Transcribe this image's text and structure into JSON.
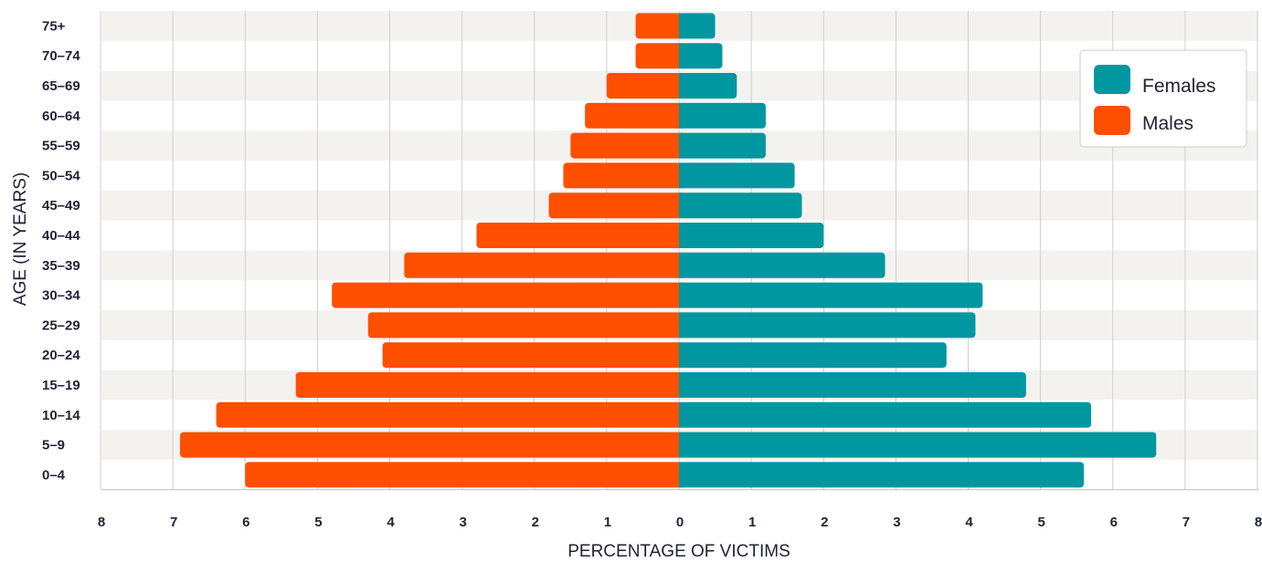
{
  "chart_data": {
    "type": "bar",
    "orientation": "horizontal-butterfly",
    "categories": [
      "75+",
      "70–74",
      "65–69",
      "60–64",
      "55–59",
      "50–54",
      "45–49",
      "40–44",
      "35–39",
      "30–34",
      "25–29",
      "20–24",
      "15–19",
      "10–14",
      "5–9",
      "0–4"
    ],
    "series": [
      {
        "name": "Females",
        "color": "#0097a0",
        "side": "right",
        "values": [
          0.5,
          0.6,
          0.8,
          1.2,
          1.2,
          1.6,
          1.7,
          2.0,
          2.85,
          4.2,
          4.1,
          3.7,
          4.8,
          5.7,
          6.6,
          5.6
        ]
      },
      {
        "name": "Males",
        "color": "#ff4f00",
        "side": "left",
        "values": [
          0.6,
          0.6,
          1.0,
          1.3,
          1.5,
          1.6,
          1.8,
          2.8,
          3.8,
          4.8,
          4.3,
          4.1,
          5.3,
          6.4,
          6.9,
          6.0
        ]
      }
    ],
    "xlabel": "PERCENTAGE OF VICTIMS",
    "ylabel": "AGE (IN YEARS)",
    "xlim": [
      -8,
      8
    ],
    "xtick_labels": [
      "8",
      "7",
      "6",
      "5",
      "4",
      "3",
      "2",
      "1",
      "0",
      "1",
      "2",
      "3",
      "4",
      "5",
      "6",
      "7",
      "8"
    ],
    "grid": true,
    "legend_position": "top-right",
    "band_color": "#f3f2ee"
  }
}
